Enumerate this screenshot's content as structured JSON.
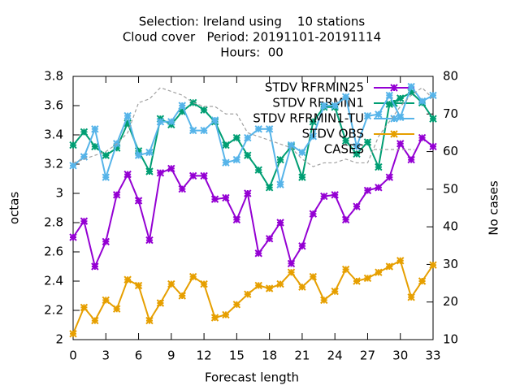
{
  "chart_data": {
    "type": "line",
    "title": [
      "Selection: Ireland using    10 stations",
      "Cloud cover   Period: 20191101-20191114",
      "Hours:  00"
    ],
    "x_label": "Forecast length",
    "y_label": "octas",
    "y2_label": "No cases",
    "x": [
      0,
      1,
      2,
      3,
      4,
      5,
      6,
      7,
      8,
      9,
      10,
      11,
      12,
      13,
      14,
      15,
      16,
      17,
      18,
      19,
      20,
      21,
      22,
      23,
      24,
      25,
      26,
      27,
      28,
      29,
      30,
      31,
      32,
      33
    ],
    "xlim": [
      0,
      33
    ],
    "xticks": [
      0,
      3,
      6,
      9,
      12,
      15,
      18,
      21,
      24,
      27,
      30,
      33
    ],
    "ylim": [
      2,
      3.8
    ],
    "yticks": [
      2,
      2.2,
      2.4,
      2.6,
      2.8,
      3,
      3.2,
      3.4,
      3.6,
      3.8
    ],
    "y2lim": [
      10,
      80
    ],
    "y2ticks": [
      10,
      20,
      30,
      40,
      50,
      60,
      70,
      80
    ],
    "legend": "top-right",
    "series": [
      {
        "name": "STDV RFRMIN25",
        "color": "#9400d3",
        "values": [
          2.7,
          2.81,
          2.5,
          2.67,
          2.99,
          3.13,
          2.95,
          2.68,
          3.14,
          3.17,
          3.03,
          3.12,
          3.12,
          2.96,
          2.97,
          2.82,
          3.0,
          2.59,
          2.69,
          2.8,
          2.52,
          2.64,
          2.86,
          2.98,
          2.99,
          2.82,
          2.91,
          3.02,
          3.04,
          3.11,
          3.34,
          3.23,
          3.38,
          3.32
        ]
      },
      {
        "name": "STDV RFRMIN1",
        "color": "#009e73",
        "values": [
          3.33,
          3.42,
          3.32,
          3.26,
          3.31,
          3.48,
          3.29,
          3.15,
          3.51,
          3.47,
          3.56,
          3.62,
          3.57,
          3.49,
          3.33,
          3.38,
          3.26,
          3.16,
          3.04,
          3.23,
          3.32,
          3.11,
          3.49,
          3.59,
          3.59,
          3.36,
          3.27,
          3.35,
          3.18,
          3.61,
          3.65,
          3.69,
          3.62,
          3.51
        ]
      },
      {
        "name": "STDV RFRMIN1-TU",
        "color": "#56b4e9",
        "values": [
          3.19,
          3.25,
          3.44,
          3.11,
          3.34,
          3.53,
          3.26,
          3.28,
          3.49,
          3.49,
          3.6,
          3.43,
          3.43,
          3.5,
          3.21,
          3.23,
          3.38,
          3.44,
          3.44,
          3.06,
          3.33,
          3.28,
          3.39,
          3.6,
          3.6,
          3.66,
          3.32,
          3.53,
          3.54,
          3.67,
          3.52,
          3.73,
          3.63,
          3.67
        ]
      },
      {
        "name": "STDV OBS",
        "color": "#e69f00",
        "values": [
          2.04,
          2.22,
          2.13,
          2.27,
          2.21,
          2.41,
          2.37,
          2.13,
          2.25,
          2.38,
          2.3,
          2.43,
          2.38,
          2.15,
          2.17,
          2.24,
          2.31,
          2.37,
          2.35,
          2.38,
          2.46,
          2.36,
          2.43,
          2.27,
          2.33,
          2.48,
          2.4,
          2.42,
          2.46,
          2.5,
          2.54,
          2.29,
          2.4,
          2.51
        ]
      },
      {
        "name": "CASES",
        "color": "#a0a0a0",
        "dashed": true,
        "markers": false,
        "axis": "y2",
        "values": [
          57,
          58,
          59,
          60,
          62,
          65,
          73,
          74,
          77,
          76,
          75,
          73,
          72,
          72,
          70,
          70,
          65,
          64,
          63,
          62,
          61,
          58,
          56,
          57,
          57,
          58,
          57,
          57,
          64,
          68,
          72,
          75,
          77,
          74
        ]
      }
    ]
  }
}
